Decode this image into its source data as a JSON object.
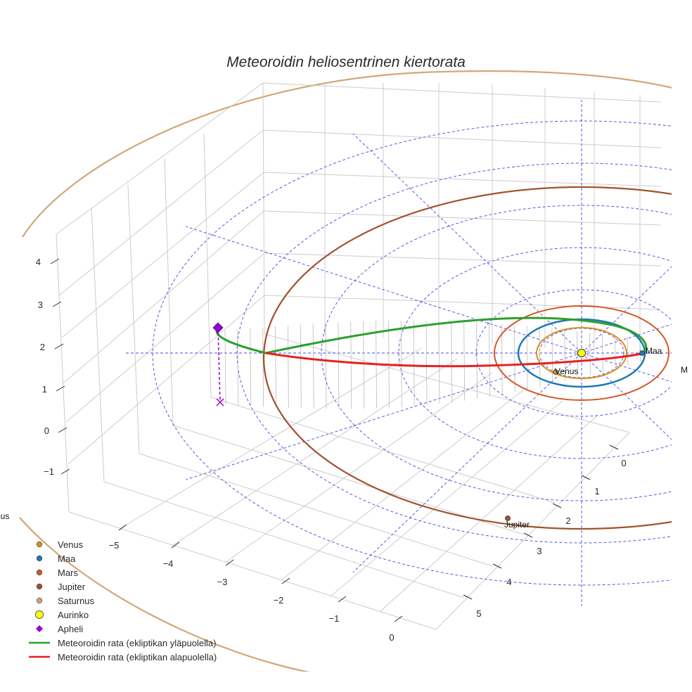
{
  "chart_data": {
    "type": "scatter3d",
    "title": "Meteoroidin heliosentrinen kiertorata",
    "axes": {
      "x_ticks": [
        "−5",
        "−4",
        "−3",
        "−2",
        "−1",
        "0"
      ],
      "y_ticks": [
        "0",
        "1",
        "2",
        "3",
        "4",
        "5"
      ],
      "z_ticks": [
        "−1",
        "0",
        "1",
        "2",
        "3",
        "4"
      ]
    },
    "planets": [
      {
        "name": "Venus",
        "label": "Venus",
        "color": "#d9901f"
      },
      {
        "name": "Maa",
        "label": "Maa",
        "color": "#1f77b4"
      },
      {
        "name": "Mars",
        "label": "Mars",
        "color": "#d4572a"
      },
      {
        "name": "Jupiter",
        "label": "Jupiter",
        "color": "#a0522d"
      },
      {
        "name": "Saturnus",
        "label": "Saturnus",
        "color": "#d2a679"
      }
    ],
    "clipped_labels": [
      "nus",
      "M"
    ],
    "sun": {
      "name": "Aurinko",
      "color": "#ffff00"
    },
    "aphelion": {
      "name": "Apheli",
      "color": "#9400d3"
    },
    "orbit_above": {
      "name": "Meteoroidin rata (ekliptikan yläpuolella)",
      "color": "#2ca02c"
    },
    "orbit_below": {
      "name": "Meteoroidin rata (ekliptikan alapuolella)",
      "color": "#e82020"
    },
    "legend": [
      {
        "label": "Venus",
        "symbol": "dot",
        "color": "#d9901f"
      },
      {
        "label": "Maa",
        "symbol": "dot",
        "color": "#1f77b4"
      },
      {
        "label": "Mars",
        "symbol": "dot",
        "color": "#d4572a"
      },
      {
        "label": "Jupiter",
        "symbol": "dot",
        "color": "#a0522d"
      },
      {
        "label": "Saturnus",
        "symbol": "dot",
        "color": "#d2a679"
      },
      {
        "label": "Aurinko",
        "symbol": "sun",
        "color": "#ffff00"
      },
      {
        "label": "Apheli",
        "symbol": "diamond",
        "color": "#9400d3"
      },
      {
        "label": "Meteoroidin rata (ekliptikan yläpuolella)",
        "symbol": "line",
        "color": "#2ca02c"
      },
      {
        "label": "Meteoroidin rata (ekliptikan alapuolella)",
        "symbol": "line",
        "color": "#e82020"
      }
    ],
    "legend_position": "bottom-left"
  }
}
